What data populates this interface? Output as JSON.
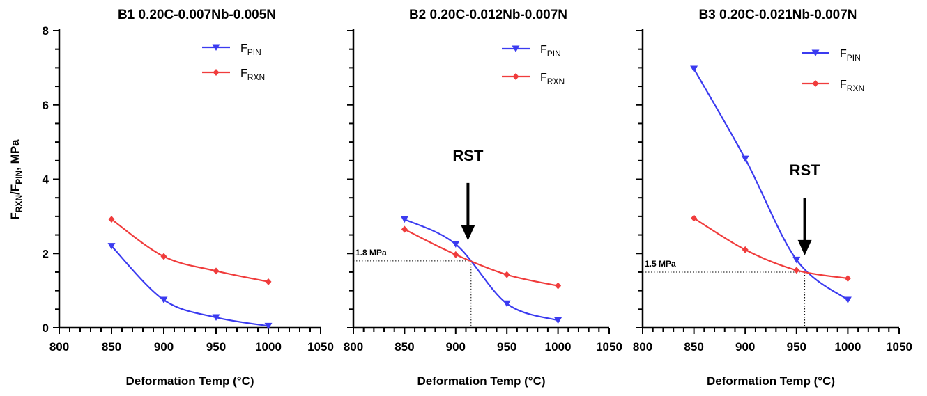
{
  "y_axis_label": {
    "main1": "F",
    "sub1": "RXN",
    "main2": "/F",
    "sub2": "PIN",
    "unit": ", MPa"
  },
  "colors": {
    "pin": "#3b3bf0",
    "rxn": "#f03c3c",
    "axis": "#000000",
    "guide": "#000000"
  },
  "chart_data": [
    {
      "type": "line",
      "title": "B1 0.20C-0.007Nb-0.005N",
      "xlabel": "Deformation Temp (°C)",
      "xlim": [
        800,
        1050
      ],
      "ylim": [
        0,
        8
      ],
      "xticks": [
        "800",
        "850",
        "900",
        "950",
        "1000",
        "1050"
      ],
      "yticks": [
        "0",
        "2",
        "4",
        "6",
        "8"
      ],
      "show_yticklabels": true,
      "grid": false,
      "legend": "top-right",
      "series": [
        {
          "key": "pin",
          "name_main": "F",
          "name_sub": "PIN",
          "marker": "triangle-down",
          "x": [
            850,
            900,
            950,
            1000
          ],
          "y": [
            2.2,
            0.75,
            0.28,
            0.05
          ]
        },
        {
          "key": "rxn",
          "name_main": "F",
          "name_sub": "RXN",
          "marker": "diamond",
          "x": [
            850,
            900,
            950,
            1000
          ],
          "y": [
            2.92,
            1.92,
            1.53,
            1.24
          ]
        }
      ],
      "annotations": []
    },
    {
      "type": "line",
      "title": "B2 0.20C-0.012Nb-0.007N",
      "xlabel": "Deformation Temp (°C)",
      "xlim": [
        800,
        1050
      ],
      "ylim": [
        0,
        8
      ],
      "xticks": [
        "800",
        "850",
        "900",
        "950",
        "1000",
        "1050"
      ],
      "yticks": [
        "0",
        "2",
        "4",
        "6",
        "8"
      ],
      "show_yticklabels": false,
      "grid": false,
      "legend": "top-right",
      "series": [
        {
          "key": "pin",
          "name_main": "F",
          "name_sub": "PIN",
          "marker": "triangle-down",
          "x": [
            850,
            900,
            950,
            1000
          ],
          "y": [
            2.92,
            2.25,
            0.65,
            0.2
          ]
        },
        {
          "key": "rxn",
          "name_main": "F",
          "name_sub": "RXN",
          "marker": "diamond",
          "x": [
            850,
            900,
            950,
            1000
          ],
          "y": [
            2.65,
            1.97,
            1.43,
            1.13
          ]
        }
      ],
      "annotations": [
        {
          "kind": "arrow",
          "text": "RST",
          "x": 912,
          "y_tip": 2.35,
          "y_tail": 3.9,
          "y_text": 4.5
        },
        {
          "kind": "guide",
          "text": "1.8 MPa",
          "x": 915,
          "y": 1.8
        }
      ]
    },
    {
      "type": "line",
      "title": "B3 0.20C-0.021Nb-0.007N",
      "xlabel": "Deformation Temp (°C)",
      "xlim": [
        800,
        1050
      ],
      "ylim": [
        0,
        8
      ],
      "xticks": [
        "800",
        "850",
        "900",
        "950",
        "1000",
        "1050"
      ],
      "yticks": [
        "0",
        "2",
        "4",
        "6",
        "8"
      ],
      "show_yticklabels": false,
      "grid": false,
      "legend": "top-right",
      "series": [
        {
          "key": "pin",
          "name_main": "F",
          "name_sub": "PIN",
          "marker": "triangle-down",
          "x": [
            850,
            900,
            950,
            1000
          ],
          "y": [
            6.97,
            4.55,
            1.83,
            0.75
          ]
        },
        {
          "key": "rxn",
          "name_main": "F",
          "name_sub": "RXN",
          "marker": "diamond",
          "x": [
            850,
            900,
            950,
            1000
          ],
          "y": [
            2.95,
            2.1,
            1.55,
            1.33
          ]
        }
      ],
      "annotations": [
        {
          "kind": "arrow",
          "text": "RST",
          "x": 958,
          "y_tip": 1.95,
          "y_tail": 3.5,
          "y_text": 4.1
        },
        {
          "kind": "guide",
          "text": "1.5 MPa",
          "x": 958,
          "y": 1.5
        }
      ]
    }
  ]
}
